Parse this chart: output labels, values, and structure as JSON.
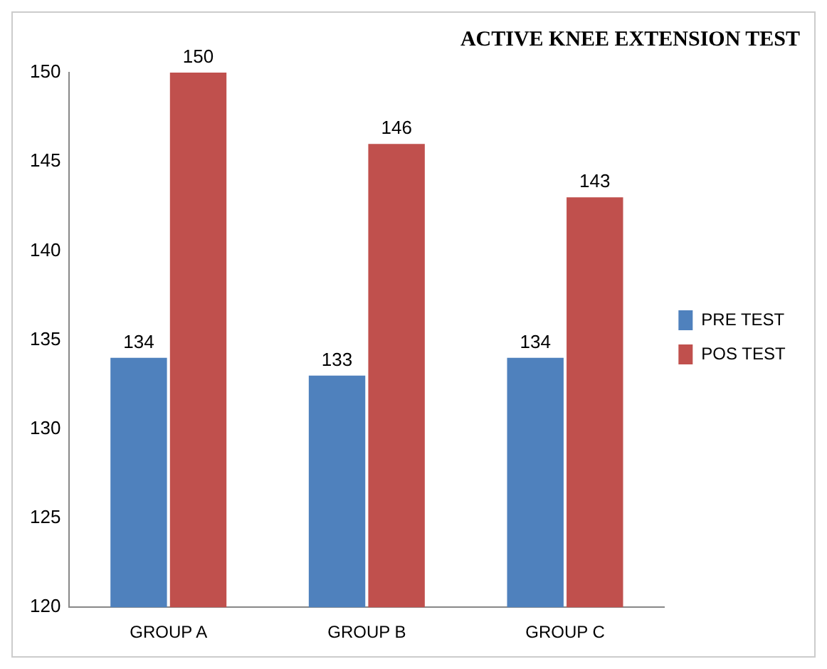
{
  "chart_data": {
    "type": "bar",
    "title": "ACTIVE KNEE EXTENSION TEST",
    "categories": [
      "GROUP A",
      "GROUP B",
      "GROUP C"
    ],
    "series": [
      {
        "name": "PRE TEST",
        "color": "#4f81bd",
        "values": [
          134,
          133,
          134
        ]
      },
      {
        "name": "POS TEST",
        "color": "#c0504d",
        "values": [
          150,
          146,
          143
        ]
      }
    ],
    "ylim": [
      120,
      150
    ],
    "yticks": [
      120,
      125,
      130,
      135,
      140,
      145,
      150
    ],
    "grid": false,
    "legend": "right",
    "data_labels": true
  }
}
